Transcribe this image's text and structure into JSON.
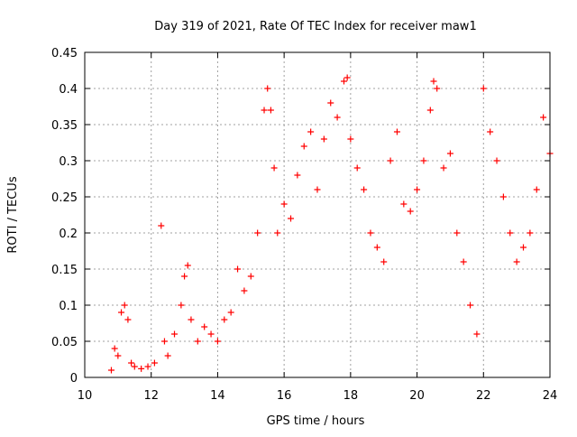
{
  "chart_data": {
    "type": "scatter",
    "title": "Day 319 of 2021, Rate Of TEC Index for receiver maw1",
    "xlabel": "GPS time / hours",
    "ylabel": "ROTI / TECUs",
    "xlim": [
      10,
      24
    ],
    "ylim": [
      0,
      0.45
    ],
    "x_ticks": [
      "10",
      "12",
      "14",
      "16",
      "18",
      "20",
      "22",
      "24"
    ],
    "y_ticks": [
      "0",
      "0.05",
      "0.1",
      "0.15",
      "0.2",
      "0.25",
      "0.3",
      "0.35",
      "0.4",
      "0.45"
    ],
    "grid": true,
    "marker": "+",
    "color": "#ff0000",
    "series": [
      {
        "x": [
          10.8,
          10.9,
          11.0,
          11.1,
          11.2,
          11.3,
          11.4,
          11.5,
          11.7,
          11.9,
          12.1,
          12.3,
          12.4,
          12.5,
          12.7,
          12.9,
          13.0,
          13.1,
          13.2,
          13.4,
          13.6,
          13.8,
          14.0,
          14.2,
          14.4,
          14.6,
          14.8,
          15.0,
          15.2,
          15.4,
          15.5,
          15.6,
          15.7,
          15.8,
          16.0,
          16.2,
          16.4,
          16.6,
          16.8,
          17.0,
          17.2,
          17.4,
          17.6,
          17.8,
          17.9,
          18.0,
          18.2,
          18.4,
          18.6,
          18.8,
          19.0,
          19.2,
          19.4,
          19.6,
          19.8,
          20.0,
          20.2,
          20.4,
          20.5,
          20.6,
          20.8,
          21.0,
          21.2,
          21.4,
          21.6,
          21.8,
          22.0,
          22.2,
          22.4,
          22.6,
          22.8,
          23.0,
          23.2,
          23.4,
          23.6,
          23.8,
          24.0
        ],
        "y": [
          0.01,
          0.04,
          0.03,
          0.09,
          0.1,
          0.08,
          0.02,
          0.015,
          0.012,
          0.015,
          0.02,
          0.21,
          0.05,
          0.03,
          0.06,
          0.1,
          0.14,
          0.155,
          0.08,
          0.05,
          0.07,
          0.06,
          0.05,
          0.08,
          0.09,
          0.15,
          0.12,
          0.14,
          0.2,
          0.37,
          0.4,
          0.37,
          0.29,
          0.2,
          0.24,
          0.22,
          0.28,
          0.32,
          0.34,
          0.26,
          0.33,
          0.38,
          0.36,
          0.41,
          0.415,
          0.33,
          0.29,
          0.26,
          0.2,
          0.18,
          0.16,
          0.3,
          0.34,
          0.24,
          0.23,
          0.26,
          0.3,
          0.37,
          0.41,
          0.4,
          0.29,
          0.31,
          0.2,
          0.16,
          0.1,
          0.06,
          0.4,
          0.34,
          0.3,
          0.25,
          0.2,
          0.16,
          0.18,
          0.2,
          0.26,
          0.36,
          0.31
        ]
      }
    ]
  }
}
